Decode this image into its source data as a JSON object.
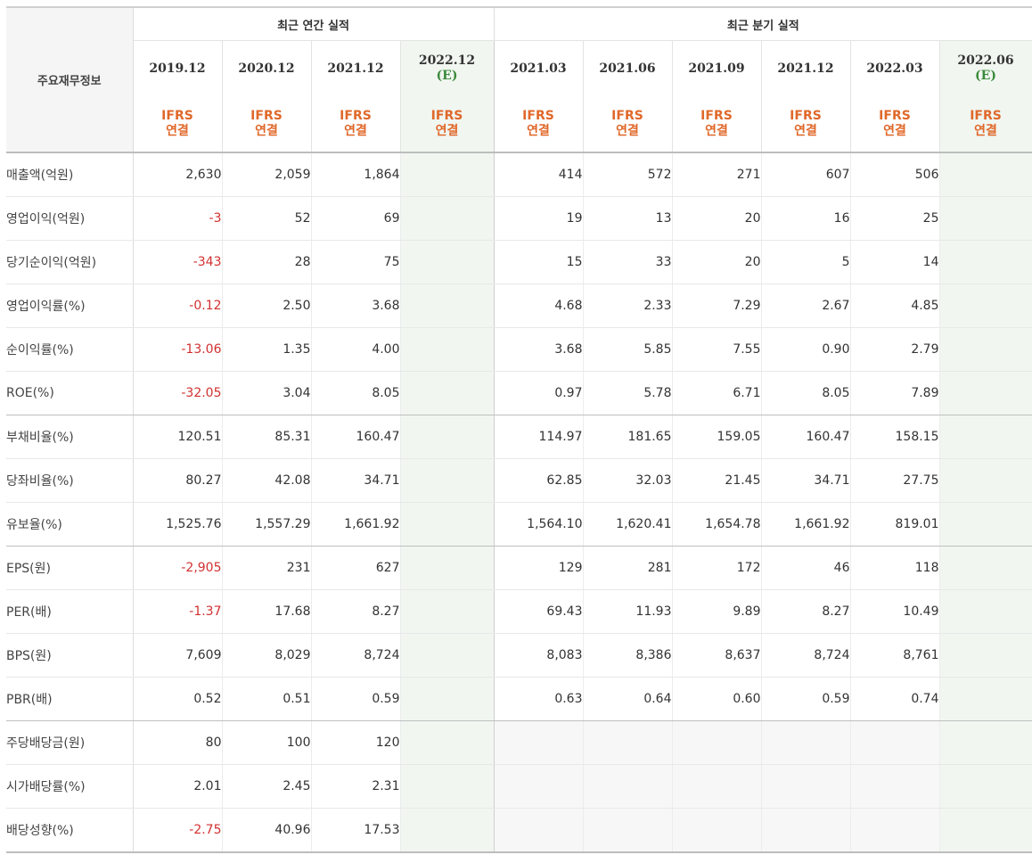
{
  "header": {
    "corner_label": "주요재무정보",
    "annual_group": "최근 연간 실적",
    "quarter_group": "최근 분기 실적",
    "est_mark": "(E)",
    "basis_line1": "IFRS",
    "basis_line2": "연결",
    "periods": [
      "2019.12",
      "2020.12",
      "2021.12",
      "2022.12",
      "2021.03",
      "2021.06",
      "2021.09",
      "2021.12",
      "2022.03",
      "2022.06"
    ]
  },
  "rows": [
    {
      "label": "매출액(억원)",
      "values": [
        "2,630",
        "2,059",
        "1,864",
        "",
        "414",
        "572",
        "271",
        "607",
        "506",
        ""
      ]
    },
    {
      "label": "영업이익(억원)",
      "values": [
        "-3",
        "52",
        "69",
        "",
        "19",
        "13",
        "20",
        "16",
        "25",
        ""
      ]
    },
    {
      "label": "당기순이익(억원)",
      "values": [
        "-343",
        "28",
        "75",
        "",
        "15",
        "33",
        "20",
        "5",
        "14",
        ""
      ]
    },
    {
      "label": "영업이익률(%)",
      "values": [
        "-0.12",
        "2.50",
        "3.68",
        "",
        "4.68",
        "2.33",
        "7.29",
        "2.67",
        "4.85",
        ""
      ]
    },
    {
      "label": "순이익률(%)",
      "values": [
        "-13.06",
        "1.35",
        "4.00",
        "",
        "3.68",
        "5.85",
        "7.55",
        "0.90",
        "2.79",
        ""
      ]
    },
    {
      "label": "ROE(%)",
      "values": [
        "-32.05",
        "3.04",
        "8.05",
        "",
        "0.97",
        "5.78",
        "6.71",
        "8.05",
        "7.89",
        ""
      ]
    },
    {
      "label": "부채비율(%)",
      "values": [
        "120.51",
        "85.31",
        "160.47",
        "",
        "114.97",
        "181.65",
        "159.05",
        "160.47",
        "158.15",
        ""
      ]
    },
    {
      "label": "당좌비율(%)",
      "values": [
        "80.27",
        "42.08",
        "34.71",
        "",
        "62.85",
        "32.03",
        "21.45",
        "34.71",
        "27.75",
        ""
      ]
    },
    {
      "label": "유보율(%)",
      "values": [
        "1,525.76",
        "1,557.29",
        "1,661.92",
        "",
        "1,564.10",
        "1,620.41",
        "1,654.78",
        "1,661.92",
        "819.01",
        ""
      ]
    },
    {
      "label": "EPS(원)",
      "values": [
        "-2,905",
        "231",
        "627",
        "",
        "129",
        "281",
        "172",
        "46",
        "118",
        ""
      ]
    },
    {
      "label": "PER(배)",
      "values": [
        "-1.37",
        "17.68",
        "8.27",
        "",
        "69.43",
        "11.93",
        "9.89",
        "8.27",
        "10.49",
        ""
      ]
    },
    {
      "label": "BPS(원)",
      "values": [
        "7,609",
        "8,029",
        "8,724",
        "",
        "8,083",
        "8,386",
        "8,637",
        "8,724",
        "8,761",
        ""
      ]
    },
    {
      "label": "PBR(배)",
      "values": [
        "0.52",
        "0.51",
        "0.59",
        "",
        "0.63",
        "0.64",
        "0.60",
        "0.59",
        "0.74",
        ""
      ]
    },
    {
      "label": "주당배당금(원)",
      "values": [
        "80",
        "100",
        "120",
        "",
        "",
        "",
        "",
        "",
        "",
        ""
      ]
    },
    {
      "label": "시가배당률(%)",
      "values": [
        "2.01",
        "2.45",
        "2.31",
        "",
        "",
        "",
        "",
        "",
        "",
        ""
      ]
    },
    {
      "label": "배당성향(%)",
      "values": [
        "-2.75",
        "40.96",
        "17.53",
        "",
        "",
        "",
        "",
        "",
        "",
        ""
      ]
    }
  ],
  "colors": {
    "negative": "#d23030",
    "basis": "#e0682a",
    "estimate_mark": "#3a8a3a",
    "estimate_bg": "#f1f6f1"
  }
}
